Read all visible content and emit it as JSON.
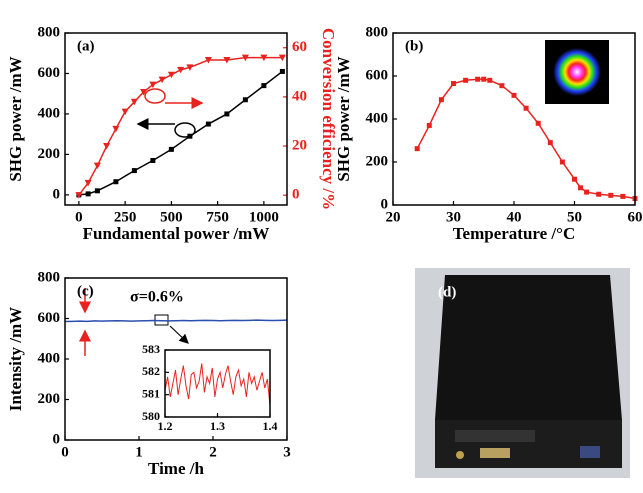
{
  "chart_data": [
    {
      "type": "line",
      "label": "(a)",
      "xlabel": "Fundamental power /mW",
      "ylabel": "SHG power /mW",
      "y2label": "Conversion efficiency /%",
      "xlim": [
        -75,
        1125
      ],
      "xticks": [
        0,
        250,
        500,
        750,
        1000
      ],
      "ylim": [
        -50,
        800
      ],
      "yticks": [
        0,
        200,
        400,
        600,
        800
      ],
      "y2lim": [
        -4,
        66
      ],
      "y2ticks": [
        0,
        20,
        40,
        60
      ],
      "y2color": "#e8231f",
      "series": [
        {
          "color": "#000000",
          "marker": "square",
          "x": [
            0,
            50,
            100,
            200,
            300,
            400,
            500,
            600,
            700,
            800,
            900,
            1000,
            1100
          ],
          "values": [
            0,
            5,
            20,
            65,
            120,
            170,
            225,
            290,
            350,
            400,
            470,
            540,
            610
          ]
        },
        {
          "color": "#e8231f",
          "marker": "triangle",
          "axis": "y2",
          "x": [
            0,
            50,
            100,
            150,
            200,
            250,
            300,
            350,
            400,
            450,
            500,
            550,
            600,
            700,
            800,
            900,
            1000,
            1100
          ],
          "values": [
            0,
            5,
            12,
            20,
            27,
            34,
            38,
            42,
            45,
            47,
            49,
            51,
            52,
            55,
            55,
            56,
            56,
            56
          ]
        }
      ]
    },
    {
      "type": "line",
      "label": "(b)",
      "xlabel": "Temperature /°C",
      "ylabel": "SHG power /mW",
      "xlim": [
        20,
        60
      ],
      "xticks": [
        20,
        30,
        40,
        50,
        60
      ],
      "ylim": [
        0,
        800
      ],
      "yticks": [
        0,
        200,
        400,
        600,
        800
      ],
      "series": [
        {
          "color": "#e8231f",
          "marker": "square",
          "x": [
            24,
            26,
            28,
            30,
            32,
            34,
            35,
            36,
            38,
            40,
            42,
            44,
            46,
            48,
            50,
            51,
            52,
            54,
            56,
            58,
            60
          ],
          "values": [
            262,
            370,
            490,
            565,
            580,
            585,
            585,
            580,
            555,
            510,
            450,
            380,
            290,
            200,
            120,
            80,
            60,
            50,
            45,
            40,
            30
          ]
        }
      ]
    },
    {
      "type": "line",
      "label": "(c)",
      "xlabel": "Time /h",
      "ylabel": "Intensity /mW",
      "annotation": "σ=0.6%",
      "xlim": [
        0,
        3
      ],
      "xticks": [
        0,
        1,
        2,
        3
      ],
      "ylim": [
        0,
        800
      ],
      "yticks": [
        0,
        200,
        400,
        600,
        800
      ],
      "series": [
        {
          "color": "#2b4fb0",
          "x": [
            0,
            0.1,
            0.2,
            0.3,
            0.4,
            0.5,
            0.6,
            0.7,
            0.8,
            0.9,
            1,
            1.1,
            1.2,
            1.3,
            1.4,
            1.5,
            1.6,
            1.7,
            1.8,
            1.9,
            2,
            2.1,
            2.2,
            2.3,
            2.4,
            2.5,
            2.6,
            2.7,
            2.8,
            2.9,
            3
          ],
          "values": [
            585,
            586,
            587,
            586,
            588,
            587,
            588,
            589,
            588,
            587,
            588,
            589,
            590,
            589,
            588,
            589,
            590,
            589,
            590,
            591,
            590,
            589,
            590,
            591,
            590,
            591,
            592,
            591,
            590,
            591,
            592
          ]
        }
      ]
    },
    {
      "type": "line",
      "xlim": [
        1.2,
        1.4
      ],
      "xticks": [
        1.2,
        1.3,
        1.4
      ],
      "ylim": [
        580,
        583
      ],
      "yticks": [
        580,
        581,
        582,
        583
      ],
      "series": [
        {
          "color": "#e8231f",
          "x": [
            1.2,
            1.205,
            1.21,
            1.215,
            1.22,
            1.225,
            1.23,
            1.235,
            1.24,
            1.245,
            1.25,
            1.255,
            1.26,
            1.265,
            1.27,
            1.275,
            1.28,
            1.285,
            1.29,
            1.295,
            1.3,
            1.305,
            1.31,
            1.315,
            1.32,
            1.325,
            1.33,
            1.335,
            1.34,
            1.345,
            1.35,
            1.355,
            1.36,
            1.365,
            1.37,
            1.375,
            1.38,
            1.385,
            1.39,
            1.395,
            1.4
          ],
          "values": [
            581.2,
            581.8,
            580.9,
            581.5,
            582.1,
            581.0,
            581.7,
            582.3,
            581.4,
            580.8,
            581.9,
            582.0,
            581.3,
            581.6,
            582.4,
            581.1,
            581.8,
            581.5,
            582.2,
            580.9,
            581.7,
            582.0,
            581.3,
            581.9,
            582.3,
            581.6,
            581.0,
            581.8,
            582.1,
            581.4,
            581.7,
            580.9,
            582.0,
            581.5,
            581.8,
            581.2,
            581.6,
            582.0,
            581.3,
            581.7,
            580.5
          ]
        }
      ]
    }
  ],
  "photo": {
    "label": "(d)"
  }
}
